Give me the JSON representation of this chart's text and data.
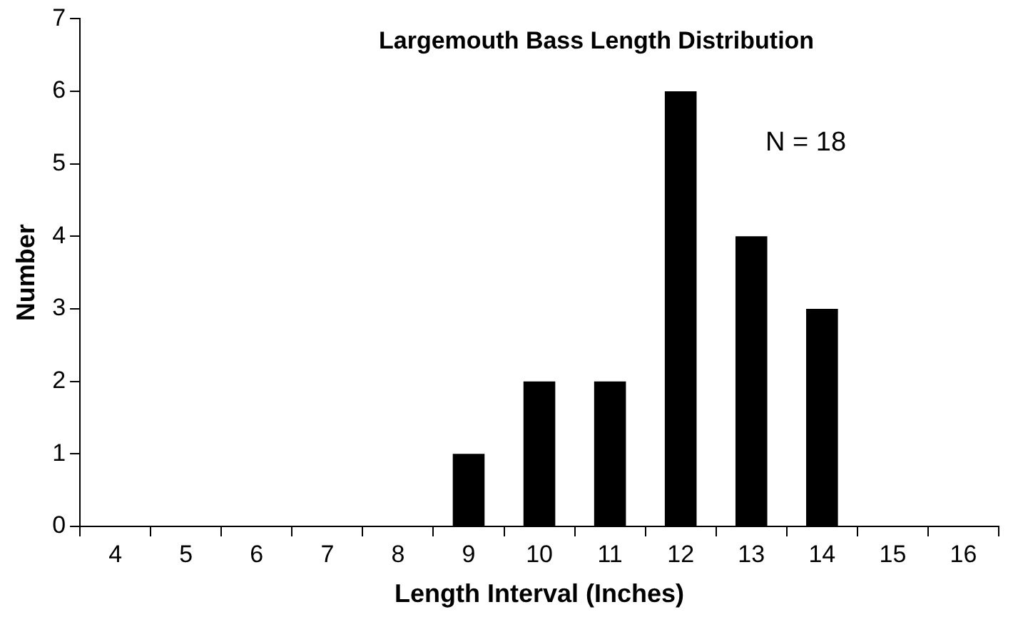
{
  "chart_data": {
    "type": "bar",
    "title": "Largemouth Bass Length Distribution",
    "xlabel": "Length Interval (Inches)",
    "ylabel": "Number",
    "categories": [
      "4",
      "5",
      "6",
      "7",
      "8",
      "9",
      "10",
      "11",
      "12",
      "13",
      "14",
      "15",
      "16"
    ],
    "values": [
      0,
      0,
      0,
      0,
      0,
      1,
      2,
      2,
      6,
      4,
      3,
      0,
      0
    ],
    "color": "#000000",
    "ylim": [
      0,
      7
    ],
    "yticks": [
      0,
      1,
      2,
      3,
      4,
      5,
      6,
      7
    ],
    "grid": false,
    "legend": false,
    "annotations": [
      "N = 18"
    ]
  }
}
